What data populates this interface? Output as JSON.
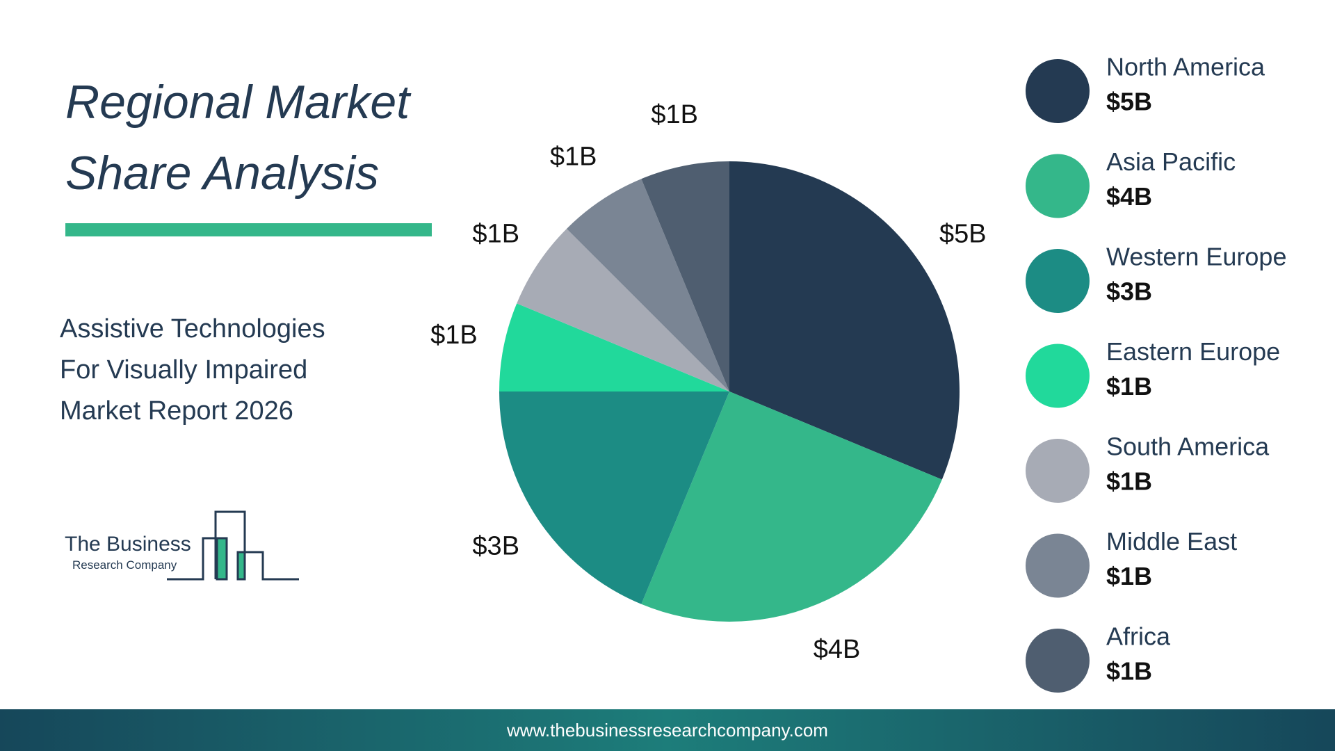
{
  "chart_data": {
    "type": "pie",
    "title": "Regional Market Share Analysis",
    "subtitle": "Assistive Technologies For Visually Impaired Market Report 2026",
    "categories": [
      "North America",
      "Asia Pacific",
      "Western Europe",
      "Eastern Europe",
      "South America",
      "Middle East",
      "Africa"
    ],
    "values": [
      5,
      4,
      3,
      1,
      1,
      1,
      1
    ],
    "value_labels": [
      "$5B",
      "$4B",
      "$3B",
      "$1B",
      "$1B",
      "$1B",
      "$1B"
    ],
    "colors": [
      "#243a52",
      "#34b78a",
      "#1c8c84",
      "#21d99b",
      "#a7abb5",
      "#7a8594",
      "#4f5e70"
    ]
  },
  "logo": {
    "line1": "The Business",
    "line2": "Research Company"
  },
  "footer": {
    "url": "www.thebusinessresearchcompany.com"
  }
}
